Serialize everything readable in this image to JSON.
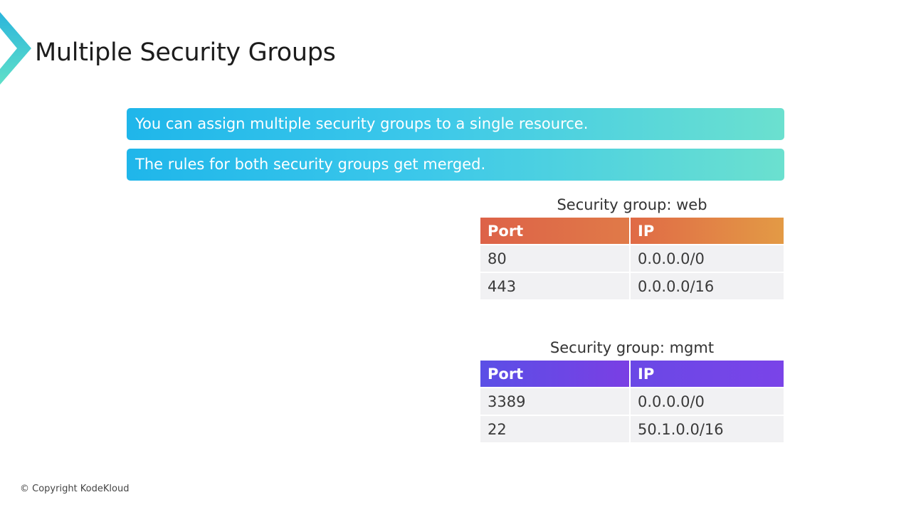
{
  "slide": {
    "title": "Multiple Security Groups",
    "callouts": [
      "You can assign multiple security groups to a single resource.",
      "The rules for both security groups get merged."
    ],
    "copyright": "© Copyright KodeKloud",
    "logo_icon": "kodekloud-chevron-icon",
    "colors": {
      "callout_gradient": [
        "#1fb6ea",
        "#6be0cf"
      ],
      "web_header_gradient": [
        "#dd6248",
        "#e39a45"
      ],
      "mgmt_header_gradient": [
        "#5b4fe6",
        "#7a44e8"
      ],
      "row_background": "#f1f1f3"
    }
  },
  "security_groups": [
    {
      "caption": "Security group: web",
      "headers": [
        "Port",
        "IP"
      ],
      "rows": [
        [
          "80",
          "0.0.0.0/0"
        ],
        [
          "443",
          "0.0.0.0/16"
        ]
      ]
    },
    {
      "caption": "Security group: mgmt",
      "headers": [
        "Port",
        "IP"
      ],
      "rows": [
        [
          "3389",
          "0.0.0.0/0"
        ],
        [
          "22",
          "50.1.0.0/16"
        ]
      ]
    }
  ]
}
